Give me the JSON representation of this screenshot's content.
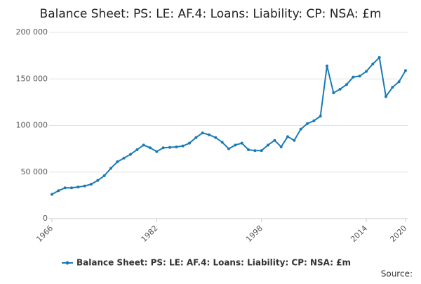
{
  "chart_data": {
    "type": "line",
    "title": "Balance Sheet: PS: LE: AF.4: Loans: Liability: CP: NSA: £m",
    "x": [
      1966,
      1967,
      1968,
      1969,
      1970,
      1971,
      1972,
      1973,
      1974,
      1975,
      1976,
      1977,
      1978,
      1979,
      1980,
      1981,
      1982,
      1983,
      1984,
      1985,
      1986,
      1987,
      1988,
      1989,
      1990,
      1991,
      1992,
      1993,
      1994,
      1995,
      1996,
      1997,
      1998,
      1999,
      2000,
      2001,
      2002,
      2003,
      2004,
      2005,
      2006,
      2007,
      2008,
      2009,
      2010,
      2011,
      2012,
      2013,
      2014,
      2015,
      2016,
      2017,
      2018,
      2019,
      2020
    ],
    "series": [
      {
        "name": "Balance Sheet: PS: LE: AF.4: Loans: Liability: CP: NSA: £m",
        "color": "#1b7ab5",
        "values": [
          26000,
          30000,
          33000,
          33000,
          34000,
          35000,
          37000,
          41000,
          46000,
          54000,
          61000,
          65000,
          69000,
          74000,
          79000,
          76000,
          72000,
          76000,
          76500,
          77000,
          78000,
          81000,
          87000,
          92000,
          90000,
          87000,
          82000,
          75000,
          79000,
          81000,
          74000,
          73000,
          73000,
          79000,
          84000,
          77000,
          88000,
          84000,
          96000,
          102000,
          105000,
          110000,
          164000,
          135000,
          139000,
          144000,
          152000,
          153000,
          158000,
          166000,
          173000,
          131000,
          141000,
          147000,
          159000
        ]
      }
    ],
    "xlim": [
      1966,
      2020
    ],
    "xticks": [
      1966,
      1982,
      1998,
      2014,
      2020
    ],
    "ylim": [
      0,
      200000
    ],
    "yticks": [
      0,
      {
        "value": 50000,
        "label": "50 000"
      },
      {
        "value": 100000,
        "label": "100 000"
      },
      {
        "value": 150000,
        "label": "150 000"
      },
      {
        "value": 200000,
        "label": "200 000"
      }
    ],
    "grid": true,
    "source": "Source:"
  }
}
